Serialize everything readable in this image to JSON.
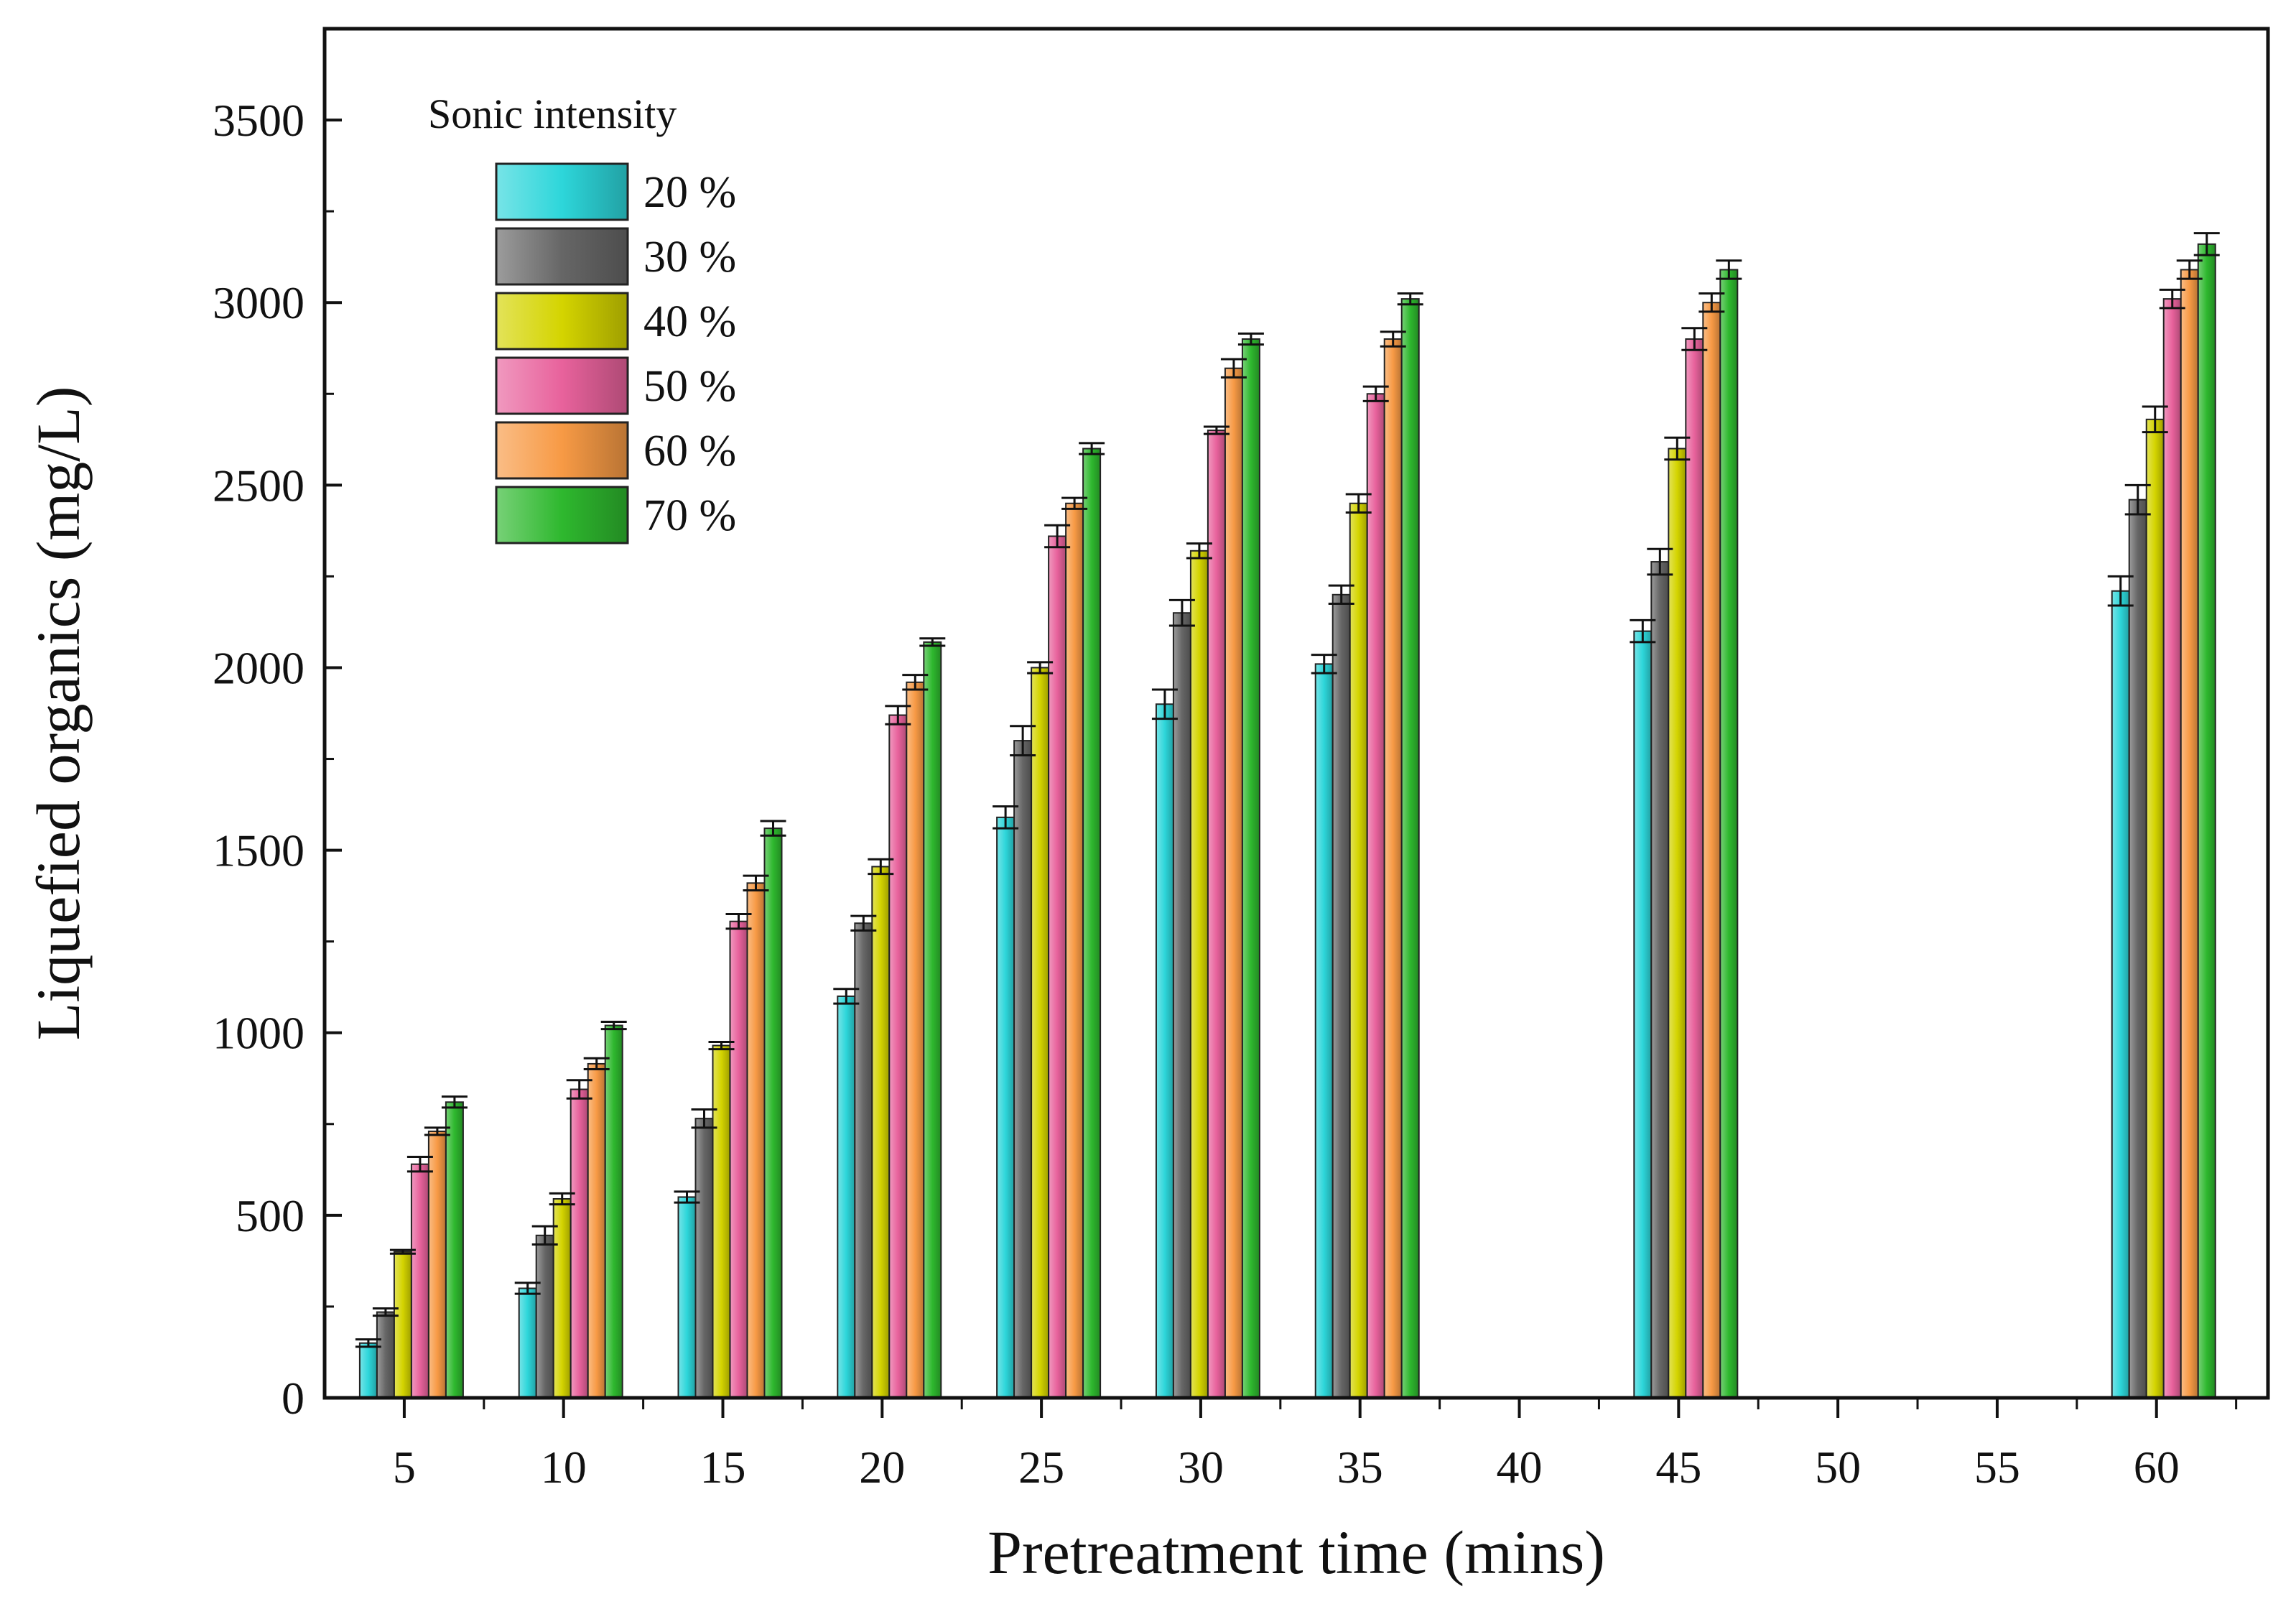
{
  "chart_data": {
    "type": "bar",
    "title": "",
    "xlabel": "Pretreatment time (mins)",
    "ylabel": "Liquefied organics (mg/L)",
    "ylim": [
      0,
      3750
    ],
    "yticks": [
      0,
      500,
      1000,
      1500,
      2000,
      2500,
      3000,
      3500
    ],
    "xlim": [
      2.5,
      63.5
    ],
    "xticks": [
      5,
      10,
      15,
      20,
      25,
      30,
      35,
      40,
      45,
      50,
      55,
      60
    ],
    "x": [
      5,
      10,
      15,
      20,
      25,
      30,
      35,
      45,
      60
    ],
    "legend_title": "Sonic intensity",
    "legend_position": "top-left",
    "series": [
      {
        "name": "20 %",
        "color": "#2dd6da",
        "values": [
          150,
          300,
          550,
          1100,
          1590,
          1900,
          2010,
          2100,
          2210
        ],
        "errors": [
          10,
          15,
          15,
          20,
          30,
          40,
          25,
          30,
          40
        ]
      },
      {
        "name": "30 %",
        "color": "#666666",
        "values": [
          235,
          445,
          765,
          1300,
          1800,
          2150,
          2200,
          2290,
          2460
        ],
        "errors": [
          10,
          25,
          25,
          20,
          40,
          35,
          25,
          35,
          40
        ]
      },
      {
        "name": "40 %",
        "color": "#d4d400",
        "values": [
          400,
          545,
          965,
          1455,
          2000,
          2320,
          2450,
          2600,
          2680
        ],
        "errors": [
          5,
          15,
          10,
          20,
          15,
          20,
          25,
          30,
          35
        ]
      },
      {
        "name": "50 %",
        "color": "#e8629c",
        "values": [
          640,
          845,
          1305,
          1870,
          2360,
          2650,
          2750,
          2900,
          3010
        ],
        "errors": [
          20,
          25,
          20,
          25,
          30,
          10,
          20,
          30,
          25
        ]
      },
      {
        "name": "60 %",
        "color": "#f79a45",
        "values": [
          730,
          915,
          1410,
          1960,
          2450,
          2820,
          2900,
          3000,
          3090
        ],
        "errors": [
          10,
          15,
          20,
          20,
          15,
          25,
          20,
          25,
          25
        ]
      },
      {
        "name": "70 %",
        "color": "#2eb82e",
        "values": [
          810,
          1020,
          1560,
          2070,
          2600,
          2900,
          3010,
          3090,
          3160
        ],
        "errors": [
          15,
          10,
          20,
          10,
          15,
          15,
          15,
          25,
          30
        ]
      }
    ]
  }
}
